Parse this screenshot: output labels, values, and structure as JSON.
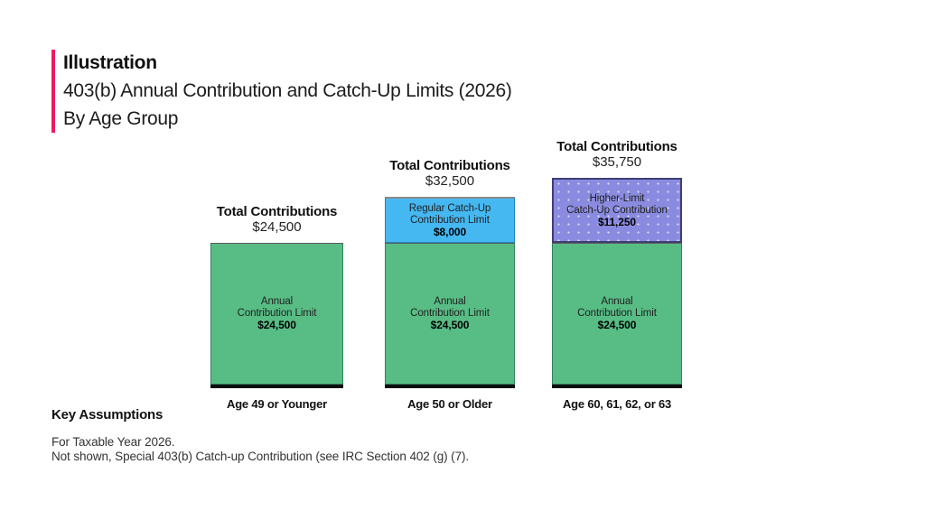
{
  "colors": {
    "accent_pink": "#ed1a5f",
    "green": "#58bd85",
    "blue": "#45b8f2",
    "purple": "#8a8be0",
    "baseline_black": "#0d0d0d"
  },
  "header": {
    "kicker": "Illustration",
    "title": "403(b) Annual Contribution and Catch-Up Limits (2026)",
    "subtitle": "By Age Group"
  },
  "chart": {
    "total_label": "Total Contributions",
    "bars": [
      {
        "age_label": "Age 49 or Younger",
        "total_amount": "$24,500",
        "segments": [
          {
            "lines": [
              "Annual",
              "Contribution Limit"
            ],
            "amount": "$24,500",
            "value": 24500,
            "color_key": "green"
          }
        ]
      },
      {
        "age_label": "Age 50 or Older",
        "total_amount": "$32,500",
        "segments": [
          {
            "lines": [
              "Regular Catch-Up",
              "Contribution Limit"
            ],
            "amount": "$8,000",
            "value": 8000,
            "color_key": "blue"
          },
          {
            "lines": [
              "Annual",
              "Contribution Limit"
            ],
            "amount": "$24,500",
            "value": 24500,
            "color_key": "green"
          }
        ]
      },
      {
        "age_label": "Age 60, 61, 62, or 63",
        "total_amount": "$35,750",
        "segments": [
          {
            "lines": [
              "Higher-Limit",
              "Catch-Up Contribution"
            ],
            "amount": "$11,250",
            "value": 11250,
            "color_key": "purple"
          },
          {
            "lines": [
              "Annual",
              "Contribution Limit"
            ],
            "amount": "$24,500",
            "value": 24500,
            "color_key": "green"
          }
        ]
      }
    ]
  },
  "chart_data": {
    "type": "bar",
    "stacked": true,
    "title": "403(b) Annual Contribution and Catch-Up Limits (2026)",
    "subtitle": "By Age Group",
    "categories": [
      "Age 49 or Younger",
      "Age 50 or Older",
      "Age 60, 61, 62, or 63"
    ],
    "series": [
      {
        "name": "Annual Contribution Limit",
        "values": [
          24500,
          24500,
          24500
        ],
        "color": "#58bd85"
      },
      {
        "name": "Regular Catch-Up Contribution Limit",
        "values": [
          0,
          8000,
          0
        ],
        "color": "#45b8f2"
      },
      {
        "name": "Higher-Limit Catch-Up Contribution",
        "values": [
          0,
          0,
          11250
        ],
        "color": "#8a8be0"
      }
    ],
    "totals": [
      24500,
      32500,
      35750
    ],
    "total_label": "Total Contributions",
    "xlabel": "",
    "ylabel": "",
    "ylim": [
      0,
      35750
    ],
    "grid": false,
    "legend": "none",
    "annotations": [
      "For Taxable Year 2026.",
      "Not shown, Special 403(b) Catch-up Contribution (see IRC Section 402 (g) (7)."
    ]
  },
  "footer": {
    "heading": "Key Assumptions",
    "lines": [
      "For Taxable Year 2026.",
      "Not shown, Special 403(b) Catch-up Contribution (see IRC Section 402 (g) (7)."
    ]
  }
}
